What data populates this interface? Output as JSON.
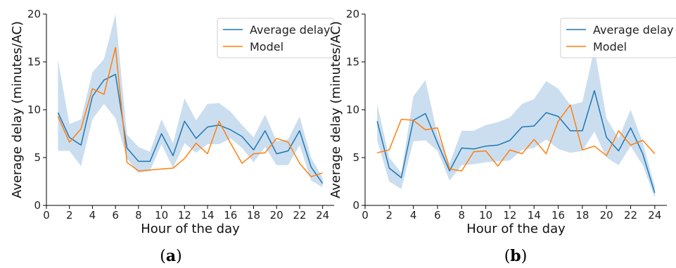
{
  "chart_data": [
    {
      "type": "line",
      "panel": {
        "open": "(",
        "letter": "a",
        "close": ")"
      },
      "xlabel": "Hour of the day",
      "ylabel": "Average delay (minutes/AC)",
      "xlim": [
        0,
        25
      ],
      "ylim": [
        0,
        20
      ],
      "xticks": [
        "0",
        "2",
        "4",
        "6",
        "8",
        "10",
        "12",
        "14",
        "16",
        "18",
        "20",
        "22",
        "24"
      ],
      "yticks": [
        "0",
        "5",
        "10",
        "15",
        "20"
      ],
      "grid": false,
      "legend_position": "top-right",
      "x": [
        1,
        2,
        3,
        4,
        5,
        6,
        7,
        8,
        9,
        10,
        11,
        12,
        13,
        14,
        15,
        16,
        17,
        18,
        19,
        20,
        21,
        22,
        23,
        24
      ],
      "band": {
        "color": "#b9d3ea",
        "upper": [
          15.2,
          8.5,
          9.0,
          13.9,
          15.3,
          20.0,
          7.4,
          6.1,
          5.6,
          9.0,
          6.5,
          11.2,
          8.9,
          10.6,
          10.7,
          9.8,
          8.4,
          7.1,
          9.5,
          6.7,
          6.9,
          9.3,
          5.0,
          2.9
        ],
        "lower": [
          5.7,
          5.7,
          4.1,
          9.0,
          10.6,
          9.1,
          4.9,
          3.4,
          3.6,
          6.4,
          3.9,
          6.5,
          5.5,
          6.4,
          6.4,
          7.0,
          6.0,
          4.5,
          6.1,
          4.2,
          4.2,
          6.3,
          2.6,
          1.9
        ]
      },
      "series": [
        {
          "name": "Average delay",
          "color": "#1f77b4",
          "values": [
            9.7,
            7.1,
            6.3,
            11.4,
            13.1,
            13.7,
            6.0,
            4.6,
            4.6,
            7.5,
            5.2,
            8.8,
            7.0,
            8.2,
            8.4,
            7.9,
            7.2,
            5.8,
            7.8,
            5.4,
            5.7,
            7.8,
            4.0,
            2.3
          ]
        },
        {
          "name": "Model",
          "color": "#ff7f0e",
          "values": [
            9.3,
            6.6,
            8.0,
            12.2,
            11.6,
            16.5,
            4.5,
            3.6,
            3.7,
            3.8,
            3.9,
            4.9,
            6.5,
            5.4,
            8.8,
            6.5,
            4.4,
            5.4,
            5.5,
            7.0,
            6.6,
            4.4,
            3.0,
            3.4
          ]
        }
      ]
    },
    {
      "type": "line",
      "panel": {
        "open": "(",
        "letter": "b",
        "close": ")"
      },
      "xlabel": "Hour of the day",
      "ylabel": "Average delay (minutes/AC)",
      "xlim": [
        0,
        25
      ],
      "ylim": [
        0,
        20
      ],
      "xticks": [
        "0",
        "2",
        "4",
        "6",
        "8",
        "10",
        "12",
        "14",
        "16",
        "18",
        "20",
        "22",
        "24"
      ],
      "yticks": [
        "0",
        "5",
        "10",
        "15",
        "20"
      ],
      "grid": false,
      "legend_position": "top-right",
      "x": [
        1,
        2,
        3,
        4,
        5,
        6,
        7,
        8,
        9,
        10,
        11,
        12,
        13,
        14,
        15,
        16,
        17,
        18,
        19,
        20,
        21,
        22,
        23,
        24
      ],
      "band": {
        "color": "#b9d3ea",
        "upper": [
          10.6,
          5.0,
          3.4,
          11.4,
          13.1,
          7.4,
          4.4,
          7.8,
          7.8,
          8.4,
          8.7,
          9.2,
          10.6,
          11.1,
          13.0,
          12.2,
          10.5,
          10.8,
          16.4,
          9.1,
          7.0,
          10.0,
          6.6,
          2.0
        ],
        "lower": [
          6.8,
          2.5,
          1.7,
          6.7,
          6.8,
          5.7,
          2.6,
          4.2,
          4.3,
          4.5,
          4.6,
          4.7,
          5.8,
          6.0,
          6.9,
          5.9,
          5.5,
          5.7,
          7.7,
          5.0,
          4.2,
          6.2,
          4.2,
          0.8
        ]
      },
      "series": [
        {
          "name": "Average delay",
          "color": "#1f77b4",
          "values": [
            8.8,
            3.9,
            2.9,
            8.9,
            9.6,
            6.5,
            3.6,
            6.0,
            5.9,
            6.2,
            6.3,
            6.8,
            8.2,
            8.3,
            9.7,
            9.3,
            7.8,
            7.8,
            12.0,
            7.1,
            5.7,
            8.1,
            5.4,
            1.3
          ]
        },
        {
          "name": "Model",
          "color": "#ff7f0e",
          "values": [
            5.5,
            5.8,
            9.0,
            8.9,
            7.9,
            8.1,
            3.8,
            3.6,
            5.6,
            5.7,
            4.1,
            5.8,
            5.4,
            6.9,
            5.4,
            8.8,
            10.5,
            5.8,
            6.2,
            5.2,
            7.8,
            6.3,
            6.8,
            5.4
          ]
        }
      ]
    }
  ]
}
